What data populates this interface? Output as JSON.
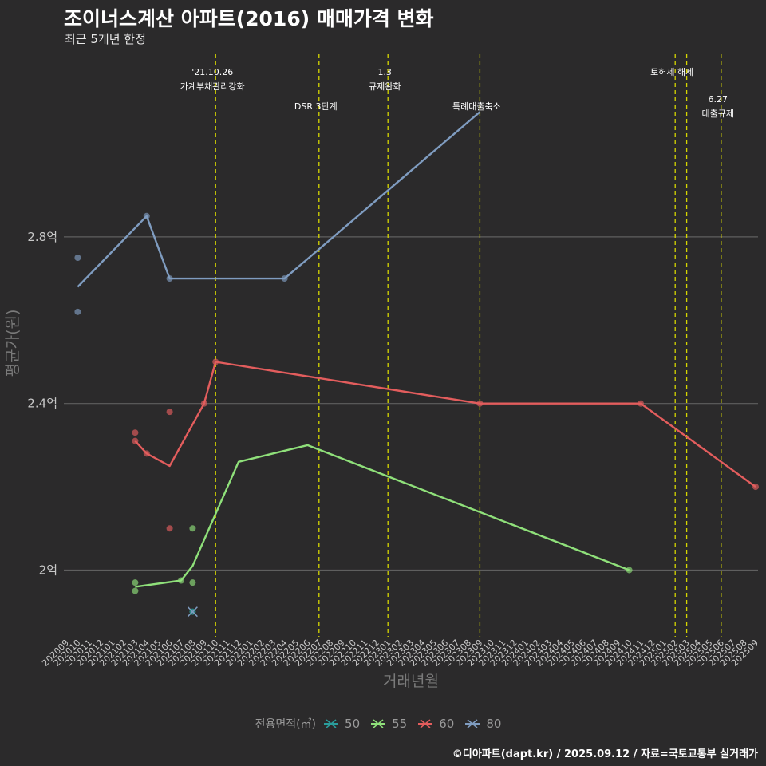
{
  "title": "조이너스계산 아파트(2016) 매매가격 변화",
  "subtitle": "최근 5개년 한정",
  "caption": "©디아파트(dapt.kr) / 2025.09.12 / 자료=국토교통부 실거래가",
  "colors": {
    "background": "#2b2a2b",
    "grid": "#5f5f5f",
    "event_line": "#d7d700",
    "text_light": "#ffffff",
    "axis_text": "#c8c8c8"
  },
  "chart_data": {
    "type": "line",
    "title": "조이너스계산 아파트(2016) 매매가격 변화",
    "xlabel": "거래년월",
    "ylabel": "평균가(원)",
    "ylim": [
      1.84,
      3.25
    ],
    "yticks": [
      {
        "value": 2.0,
        "label": "2억"
      },
      {
        "value": 2.4,
        "label": "2.4억"
      },
      {
        "value": 2.8,
        "label": "2.8억"
      }
    ],
    "x_categories": [
      "202009",
      "202010",
      "202011",
      "202012",
      "202101",
      "202102",
      "202103",
      "202104",
      "202105",
      "202106",
      "202107",
      "202108",
      "202109",
      "202110",
      "202111",
      "202112",
      "202201",
      "202202",
      "202203",
      "202204",
      "202205",
      "202206",
      "202207",
      "202208",
      "202209",
      "202210",
      "202211",
      "202212",
      "202301",
      "202302",
      "202303",
      "202304",
      "202305",
      "202306",
      "202307",
      "202308",
      "202309",
      "202310",
      "202311",
      "202312",
      "202401",
      "202402",
      "202403",
      "202404",
      "202405",
      "202406",
      "202407",
      "202408",
      "202409",
      "202410",
      "202411",
      "202412",
      "202501",
      "202502",
      "202503",
      "202504",
      "202505",
      "202506",
      "202507",
      "202508",
      "202509"
    ],
    "legend_title": "전용면적(㎡)",
    "series": [
      {
        "name": "50",
        "color": "#2a9d9c",
        "line": [],
        "points": [
          {
            "x": "202108",
            "y": 1.9
          }
        ]
      },
      {
        "name": "55",
        "color": "#8fe07a",
        "line": [
          {
            "x": "202103",
            "y": 1.96
          },
          {
            "x": "202107",
            "y": 1.975
          },
          {
            "x": "202108",
            "y": 2.01
          },
          {
            "x": "202112",
            "y": 2.26
          },
          {
            "x": "202206",
            "y": 2.3
          },
          {
            "x": "202410",
            "y": 2.0
          }
        ],
        "points": [
          {
            "x": "202103",
            "y": 1.97
          },
          {
            "x": "202103",
            "y": 1.95
          },
          {
            "x": "202107",
            "y": 1.975
          },
          {
            "x": "202108",
            "y": 1.97
          },
          {
            "x": "202108",
            "y": 2.1
          },
          {
            "x": "202410",
            "y": 2.0
          }
        ]
      },
      {
        "name": "60",
        "color": "#e35d5d",
        "line": [
          {
            "x": "202103",
            "y": 2.31
          },
          {
            "x": "202104",
            "y": 2.28
          },
          {
            "x": "202106",
            "y": 2.25
          },
          {
            "x": "202109",
            "y": 2.4
          },
          {
            "x": "202110",
            "y": 2.5
          },
          {
            "x": "202309",
            "y": 2.4
          },
          {
            "x": "202411",
            "y": 2.4
          },
          {
            "x": "202509",
            "y": 2.2
          }
        ],
        "points": [
          {
            "x": "202103",
            "y": 2.33
          },
          {
            "x": "202103",
            "y": 2.31
          },
          {
            "x": "202104",
            "y": 2.28
          },
          {
            "x": "202106",
            "y": 2.38
          },
          {
            "x": "202106",
            "y": 2.1
          },
          {
            "x": "202109",
            "y": 2.4
          },
          {
            "x": "202110",
            "y": 2.5
          },
          {
            "x": "202309",
            "y": 2.4
          },
          {
            "x": "202411",
            "y": 2.4
          },
          {
            "x": "202509",
            "y": 2.2
          }
        ]
      },
      {
        "name": "80",
        "color": "#7f9cc0",
        "line": [
          {
            "x": "202010",
            "y": 2.68
          },
          {
            "x": "202104",
            "y": 2.85
          },
          {
            "x": "202106",
            "y": 2.7
          },
          {
            "x": "202204",
            "y": 2.7
          },
          {
            "x": "202309",
            "y": 3.1
          }
        ],
        "points": [
          {
            "x": "202010",
            "y": 2.75
          },
          {
            "x": "202010",
            "y": 2.62
          },
          {
            "x": "202104",
            "y": 2.85
          },
          {
            "x": "202106",
            "y": 2.7
          },
          {
            "x": "202204",
            "y": 2.7
          }
        ]
      }
    ],
    "events": [
      {
        "x": "202110",
        "label1": "'21.10.26",
        "label2": "가계부채관리강화",
        "level": 1
      },
      {
        "x": "202207",
        "label1": "DSR 3단계",
        "label2": "",
        "level": 2
      },
      {
        "x": "202301",
        "label1": "1.3",
        "label2": "규제완화",
        "level": 1
      },
      {
        "x": "202309",
        "label1": "특례대출축소",
        "label2": "",
        "level": 2
      },
      {
        "x": "202502",
        "label1": "토허제 해제",
        "label2": "",
        "level": 1
      },
      {
        "x": "202503",
        "label1": "",
        "label2": "",
        "level": 0
      },
      {
        "x": "202506",
        "label1": "6.27",
        "label2": "대출규제",
        "level": 3
      }
    ]
  }
}
